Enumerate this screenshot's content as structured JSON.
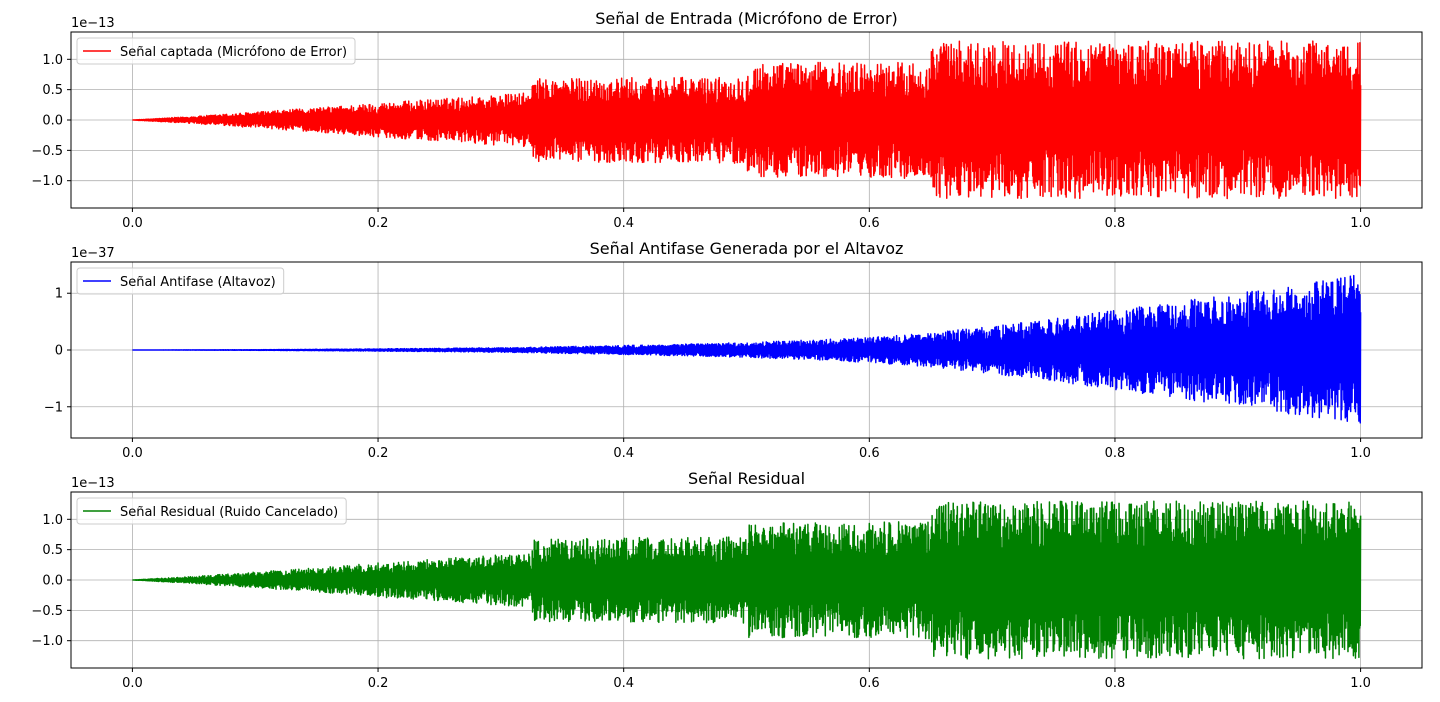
{
  "chart_data": [
    {
      "type": "line",
      "title": "Señal de Entrada (Micrófono de Error)",
      "xlabel": "",
      "ylabel": "",
      "xlim": [
        -0.05,
        1.05
      ],
      "ylim": [
        -1.45,
        1.45
      ],
      "y_exponent_label": "1e−13",
      "x_ticks": [
        0.0,
        0.2,
        0.4,
        0.6,
        0.8,
        1.0
      ],
      "x_tick_labels": [
        "0.0",
        "0.2",
        "0.4",
        "0.6",
        "0.8",
        "1.0"
      ],
      "y_ticks": [
        -1.0,
        -0.5,
        0.0,
        0.5,
        1.0
      ],
      "y_tick_labels": [
        "−1.0",
        "−0.5",
        "0.0",
        "0.5",
        "1.0"
      ],
      "grid": true,
      "legend": "upper-left",
      "series": [
        {
          "name": "Señal captada (Micrófono de Error)",
          "color": "#ff0000",
          "envelope_x": [
            0.0,
            0.05,
            0.1,
            0.15,
            0.2,
            0.25,
            0.3,
            0.325,
            0.326,
            0.4,
            0.45,
            0.5,
            0.501,
            0.55,
            0.6,
            0.65,
            0.651,
            0.7,
            0.75,
            0.8,
            0.85,
            0.9,
            0.95,
            1.0
          ],
          "envelope_y": [
            0.0,
            0.06,
            0.13,
            0.2,
            0.28,
            0.35,
            0.42,
            0.45,
            0.68,
            0.7,
            0.7,
            0.72,
            0.95,
            0.95,
            0.95,
            0.97,
            1.3,
            1.3,
            1.3,
            1.3,
            1.3,
            1.3,
            1.3,
            1.3
          ]
        }
      ]
    },
    {
      "type": "line",
      "title": "Señal Antifase Generada por el Altavoz",
      "xlabel": "",
      "ylabel": "",
      "xlim": [
        -0.05,
        1.05
      ],
      "ylim": [
        -1.55,
        1.55
      ],
      "y_exponent_label": "1e−37",
      "x_ticks": [
        0.0,
        0.2,
        0.4,
        0.6,
        0.8,
        1.0
      ],
      "x_tick_labels": [
        "0.0",
        "0.2",
        "0.4",
        "0.6",
        "0.8",
        "1.0"
      ],
      "y_ticks": [
        -1,
        0,
        1
      ],
      "y_tick_labels": [
        "−1",
        "0",
        "1"
      ],
      "grid": true,
      "legend": "upper-left",
      "series": [
        {
          "name": "Señal Antifase (Altavoz)",
          "color": "#0000ff",
          "envelope_x": [
            0.0,
            0.1,
            0.2,
            0.3,
            0.4,
            0.5,
            0.6,
            0.65,
            0.7,
            0.75,
            0.8,
            0.85,
            0.9,
            0.95,
            1.0
          ],
          "envelope_y": [
            0.0,
            0.005,
            0.02,
            0.04,
            0.08,
            0.13,
            0.22,
            0.3,
            0.42,
            0.55,
            0.7,
            0.85,
            1.0,
            1.15,
            1.35
          ]
        }
      ]
    },
    {
      "type": "line",
      "title": "Señal Residual",
      "xlabel": "",
      "ylabel": "",
      "xlim": [
        -0.05,
        1.05
      ],
      "ylim": [
        -1.45,
        1.45
      ],
      "y_exponent_label": "1e−13",
      "x_ticks": [
        0.0,
        0.2,
        0.4,
        0.6,
        0.8,
        1.0
      ],
      "x_tick_labels": [
        "0.0",
        "0.2",
        "0.4",
        "0.6",
        "0.8",
        "1.0"
      ],
      "y_ticks": [
        -1.0,
        -0.5,
        0.0,
        0.5,
        1.0
      ],
      "y_tick_labels": [
        "−1.0",
        "−0.5",
        "0.0",
        "0.5",
        "1.0"
      ],
      "grid": true,
      "legend": "upper-left",
      "series": [
        {
          "name": "Señal Residual (Ruido Cancelado)",
          "color": "#008000",
          "envelope_x": [
            0.0,
            0.05,
            0.1,
            0.15,
            0.2,
            0.25,
            0.3,
            0.325,
            0.326,
            0.4,
            0.45,
            0.5,
            0.501,
            0.55,
            0.6,
            0.65,
            0.651,
            0.7,
            0.75,
            0.8,
            0.85,
            0.9,
            0.95,
            1.0
          ],
          "envelope_y": [
            0.0,
            0.06,
            0.13,
            0.2,
            0.28,
            0.35,
            0.42,
            0.45,
            0.68,
            0.7,
            0.7,
            0.72,
            0.95,
            0.95,
            0.95,
            0.97,
            1.3,
            1.3,
            1.3,
            1.3,
            1.3,
            1.3,
            1.3,
            1.3
          ]
        }
      ]
    }
  ]
}
